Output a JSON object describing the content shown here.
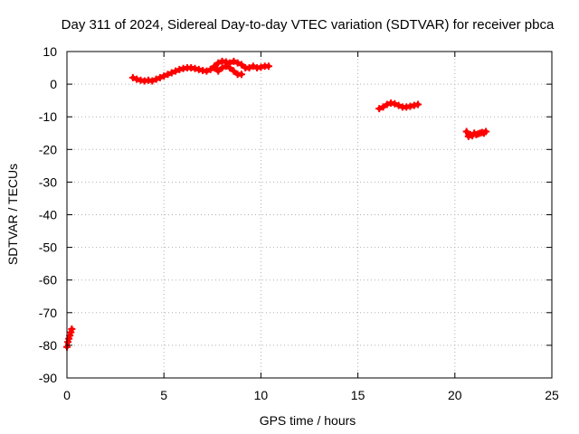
{
  "chart_data": {
    "type": "scatter",
    "title": "Day 311 of 2024, Sidereal Day-to-day VTEC variation (SDTVAR) for receiver pbca",
    "xlabel": "GPS time / hours",
    "ylabel": "SDTVAR / TECUs",
    "xlim": [
      0,
      25
    ],
    "ylim": [
      -90,
      10
    ],
    "xticks": [
      "0",
      "5",
      "10",
      "15",
      "20",
      "25"
    ],
    "yticks": [
      "10",
      "0",
      "-10",
      "-20",
      "-30",
      "-40",
      "-50",
      "-60",
      "-70",
      "-80",
      "-90"
    ],
    "grid": true,
    "legend": "none",
    "series_color": "#ff0000",
    "series": [
      {
        "name": "segment-1",
        "x": [
          0.0,
          0.05,
          0.1,
          0.15,
          0.2,
          0.25
        ],
        "y": [
          -80.5,
          -79.0,
          -78.0,
          -77.0,
          -76.0,
          -75.0
        ]
      },
      {
        "name": "segment-2",
        "x": [
          3.4,
          3.6,
          3.8,
          4.0,
          4.2,
          4.4,
          4.6,
          4.8,
          5.0,
          5.2,
          5.4,
          5.6,
          5.8,
          6.0,
          6.2,
          6.4,
          6.6,
          6.8,
          7.0,
          7.2,
          7.4,
          7.6,
          7.8,
          8.0,
          8.2,
          8.4,
          8.6,
          8.8,
          9.0
        ],
        "y": [
          2.0,
          1.5,
          1.2,
          1.0,
          1.2,
          1.0,
          1.5,
          2.0,
          2.5,
          3.0,
          3.5,
          4.0,
          4.5,
          4.8,
          5.0,
          5.0,
          4.8,
          4.5,
          4.2,
          4.0,
          4.5,
          5.0,
          4.0,
          5.0,
          5.5,
          5.0,
          4.0,
          3.0,
          3.0
        ]
      },
      {
        "name": "segment-3",
        "x": [
          7.6,
          7.8,
          8.0,
          8.2,
          8.4,
          8.6,
          8.8,
          9.0,
          9.2,
          9.4,
          9.6,
          9.8,
          10.0,
          10.2,
          10.4
        ],
        "y": [
          5.5,
          6.5,
          7.0,
          6.8,
          6.5,
          7.0,
          6.5,
          6.0,
          5.0,
          5.0,
          5.5,
          5.0,
          5.2,
          5.5,
          5.5
        ]
      },
      {
        "name": "segment-4",
        "x": [
          16.1,
          16.3,
          16.5,
          16.7,
          16.9,
          17.1,
          17.3,
          17.5,
          17.7,
          17.9,
          18.1
        ],
        "y": [
          -7.5,
          -7.0,
          -6.2,
          -5.8,
          -6.0,
          -6.5,
          -7.0,
          -7.0,
          -6.8,
          -6.5,
          -6.2
        ]
      },
      {
        "name": "segment-5",
        "x": [
          20.6,
          20.7,
          20.8,
          20.9,
          21.0,
          21.1,
          21.2,
          21.3,
          21.4,
          21.5,
          21.6
        ],
        "y": [
          -14.5,
          -16.0,
          -15.5,
          -15.8,
          -15.0,
          -15.5,
          -15.2,
          -15.0,
          -14.8,
          -15.0,
          -14.5
        ]
      }
    ]
  }
}
